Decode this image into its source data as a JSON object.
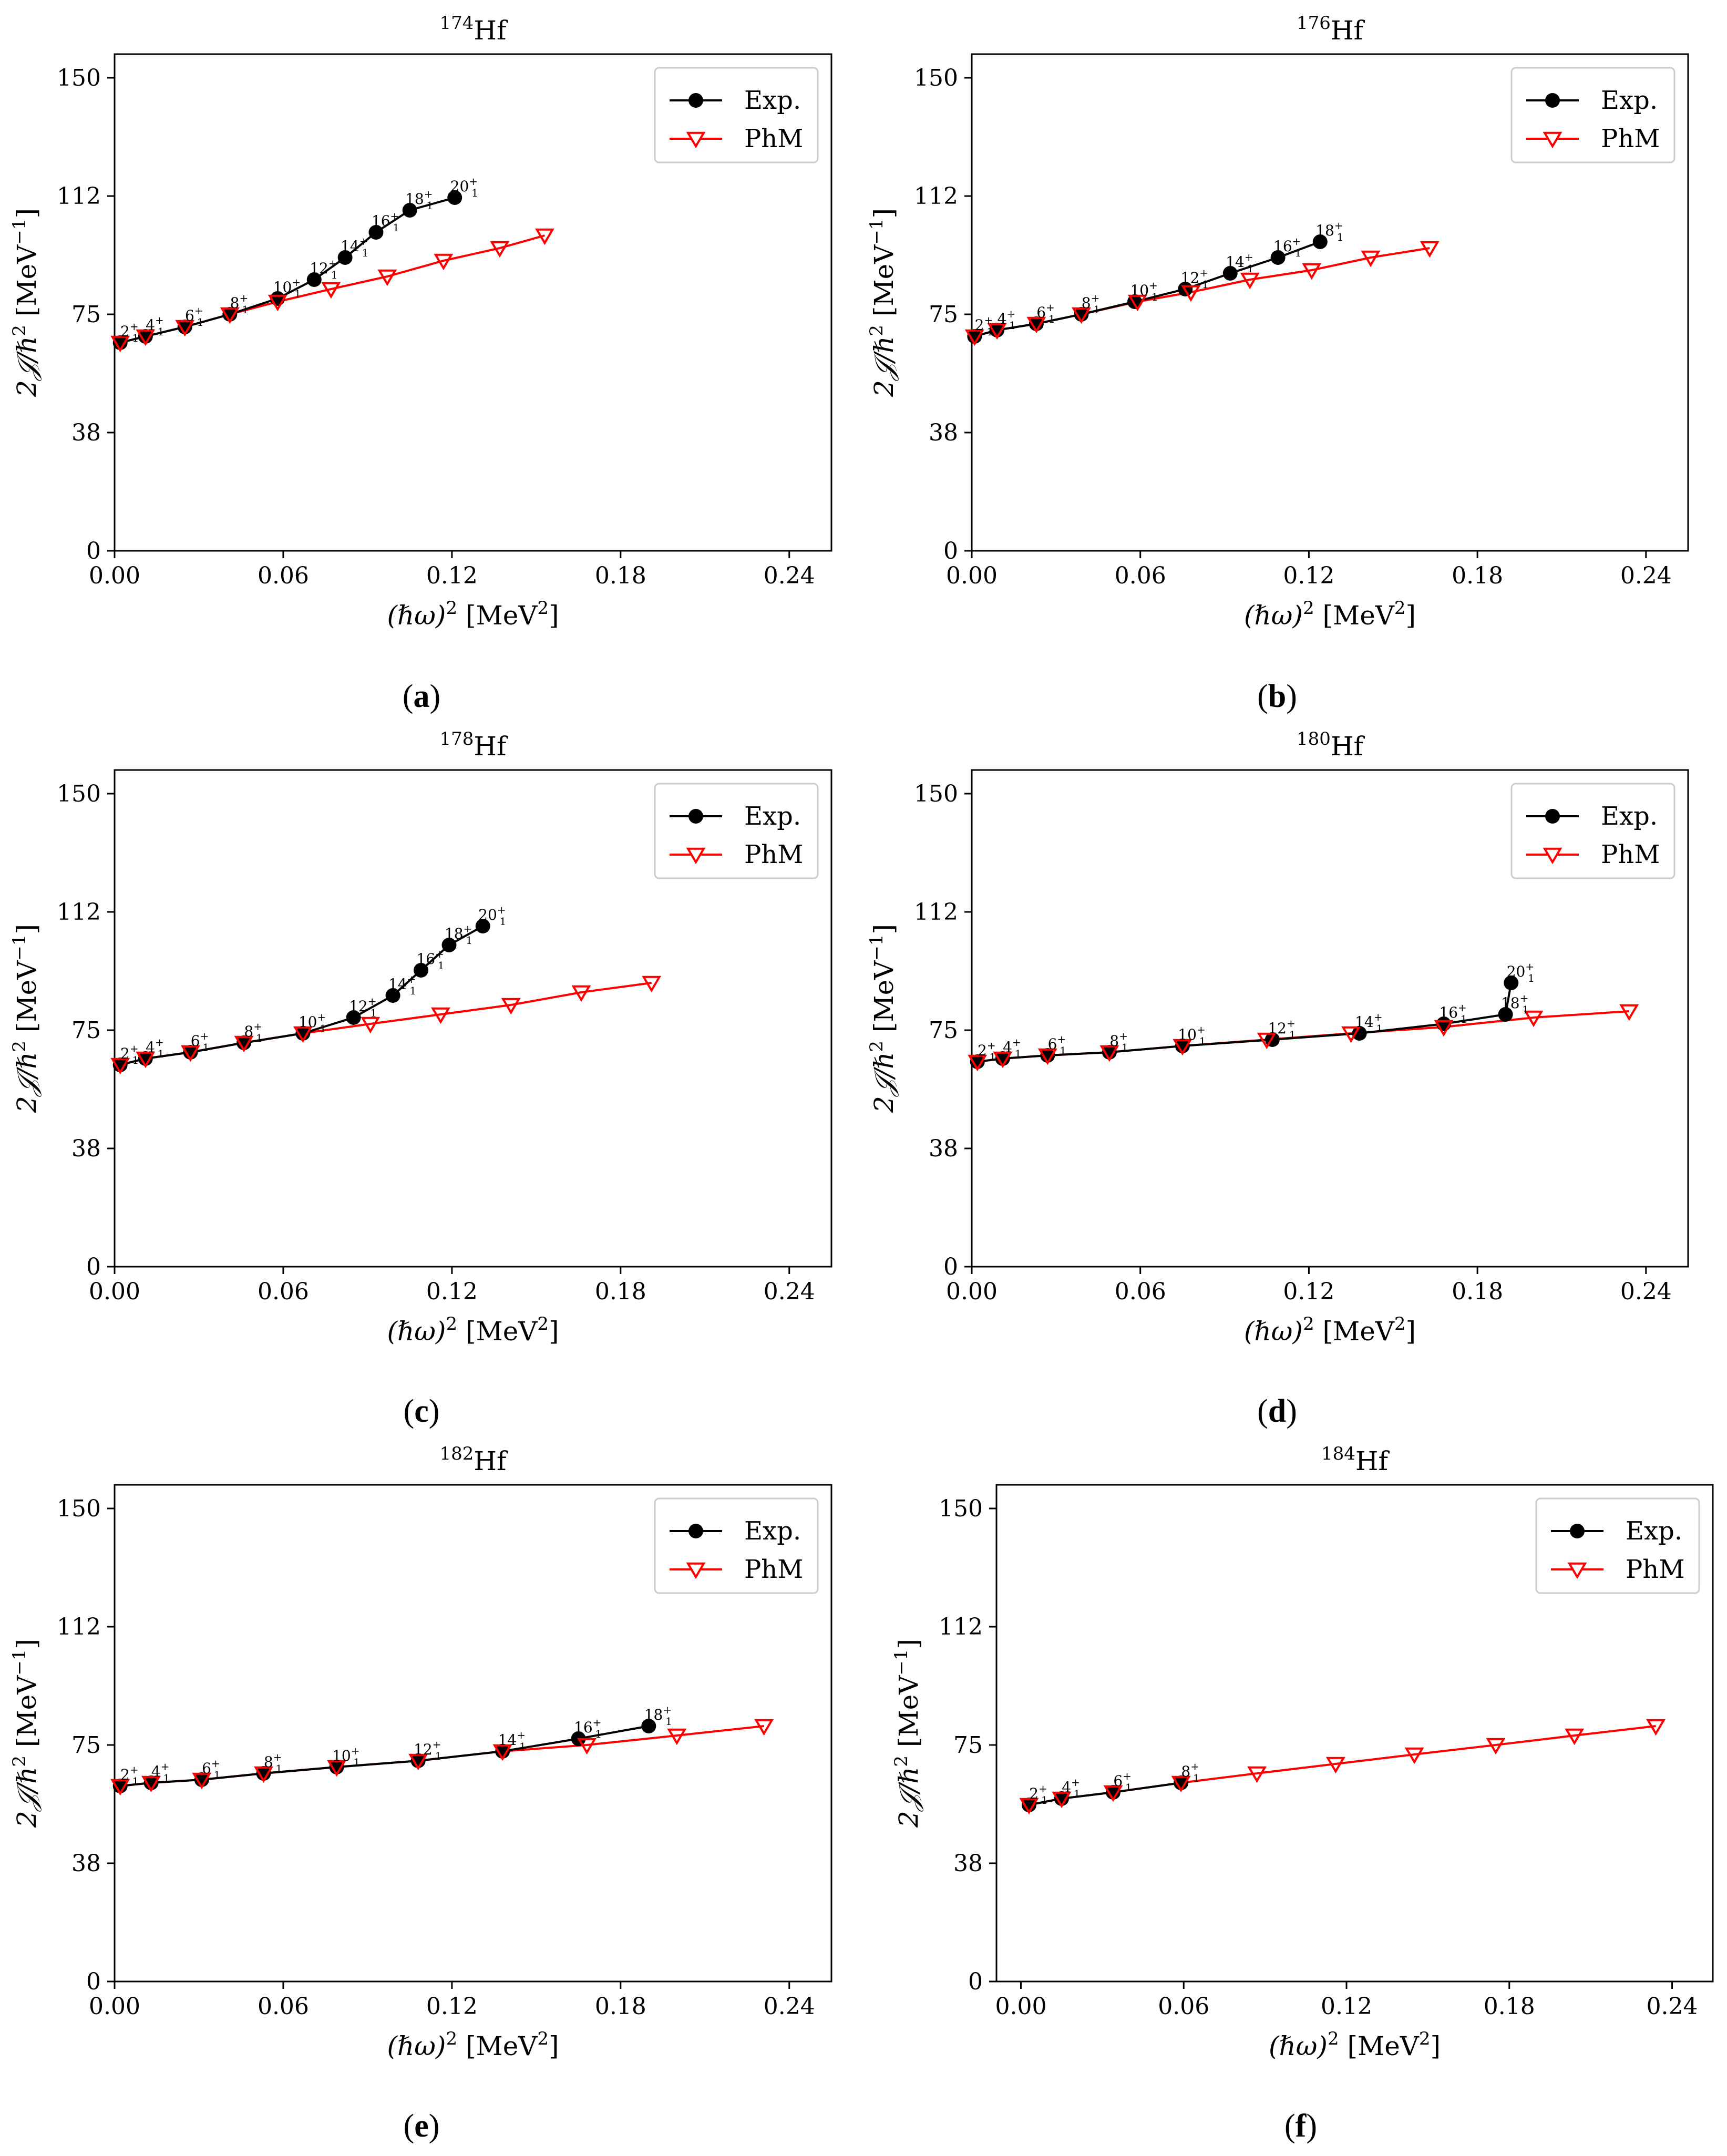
{
  "legend": {
    "exp": "Exp.",
    "phm": "PhM"
  },
  "axes": {
    "xlabel_pre": "(ℏω)",
    "xlabel_sup": "2",
    "xlabel_unit": " [MeV",
    "xlabel_unit_sup": "2",
    "xlabel_close": "]",
    "ylabel_pre": "2𝒥/ℏ",
    "ylabel_sup": "2",
    "ylabel_unit": " [MeV",
    "ylabel_unit_sup": "−1",
    "ylabel_close": "]",
    "xticks": [
      "0.00",
      "0.06",
      "0.12",
      "0.18",
      "0.24"
    ],
    "yticks": [
      "0",
      "38",
      "75",
      "112",
      "150"
    ]
  },
  "colors": {
    "exp": "#000000",
    "phm": "#ff0000"
  },
  "captions": [
    {
      "open": "(",
      "letter": "a",
      "close": ")"
    },
    {
      "open": "(",
      "letter": "b",
      "close": ")"
    },
    {
      "open": "(",
      "letter": "c",
      "close": ")"
    },
    {
      "open": "(",
      "letter": "d",
      "close": ")"
    },
    {
      "open": "(",
      "letter": "e",
      "close": ")"
    },
    {
      "open": "(",
      "letter": "f",
      "close": ")"
    }
  ],
  "chart_data": [
    {
      "type": "line",
      "title_mass": "174",
      "title_element": "Hf",
      "xlim": [
        0,
        0.255
      ],
      "ylim": [
        0,
        157.5
      ],
      "xticks": [
        0,
        0.06,
        0.12,
        0.18,
        0.24
      ],
      "yticks": [
        0,
        37.5,
        75,
        112.5,
        150
      ],
      "legend_position": "top-right",
      "series": [
        {
          "name": "Exp.",
          "marker": "circle",
          "x": [
            0.002,
            0.011,
            0.025,
            0.041,
            0.058,
            0.071,
            0.082,
            0.093,
            0.105,
            0.121
          ],
          "y": [
            66,
            68,
            71,
            75,
            80,
            86,
            93,
            101,
            108,
            112
          ],
          "labels": [
            [
              "2",
              "1"
            ],
            [
              "4",
              "1"
            ],
            [
              "6",
              "1"
            ],
            [
              "8",
              "1"
            ],
            [
              "10",
              "1"
            ],
            [
              "12",
              "1"
            ],
            [
              "14",
              "1"
            ],
            [
              "16",
              "1"
            ],
            [
              "18",
              "1"
            ],
            [
              "20",
              "1"
            ]
          ]
        },
        {
          "name": "PhM",
          "marker": "triangle_down",
          "x": [
            0.002,
            0.011,
            0.025,
            0.041,
            0.058,
            0.077,
            0.097,
            0.117,
            0.137,
            0.153
          ],
          "y": [
            66,
            68,
            71,
            75,
            79,
            83,
            87,
            92,
            96,
            100
          ]
        }
      ]
    },
    {
      "type": "line",
      "title_mass": "176",
      "title_element": "Hf",
      "xlim": [
        0,
        0.255
      ],
      "ylim": [
        0,
        157.5
      ],
      "xticks": [
        0,
        0.06,
        0.12,
        0.18,
        0.24
      ],
      "yticks": [
        0,
        37.5,
        75,
        112.5,
        150
      ],
      "legend_position": "top-right",
      "series": [
        {
          "name": "Exp.",
          "marker": "circle",
          "x": [
            0.001,
            0.009,
            0.023,
            0.039,
            0.058,
            0.076,
            0.092,
            0.109,
            0.124
          ],
          "y": [
            68,
            70,
            72,
            75,
            79,
            83,
            88,
            93,
            98
          ],
          "labels": [
            [
              "2",
              "1"
            ],
            [
              "4",
              "1"
            ],
            [
              "6",
              "1"
            ],
            [
              "8",
              "1"
            ],
            [
              "10",
              "1"
            ],
            [
              "12",
              "1"
            ],
            [
              "14",
              "1"
            ],
            [
              "16",
              "1"
            ],
            [
              "18",
              "1"
            ]
          ]
        },
        {
          "name": "PhM",
          "marker": "triangle_down",
          "x": [
            0.001,
            0.009,
            0.023,
            0.039,
            0.059,
            0.078,
            0.099,
            0.121,
            0.142,
            0.163
          ],
          "y": [
            68,
            70,
            72,
            75,
            79,
            82,
            86,
            89,
            93,
            96
          ]
        }
      ]
    },
    {
      "type": "line",
      "title_mass": "178",
      "title_element": "Hf",
      "xlim": [
        0,
        0.255
      ],
      "ylim": [
        0,
        157.5
      ],
      "xticks": [
        0,
        0.06,
        0.12,
        0.18,
        0.24
      ],
      "yticks": [
        0,
        37.5,
        75,
        112.5,
        150
      ],
      "legend_position": "top-right",
      "series": [
        {
          "name": "Exp.",
          "marker": "circle",
          "x": [
            0.002,
            0.011,
            0.027,
            0.046,
            0.067,
            0.085,
            0.099,
            0.109,
            0.119,
            0.131
          ],
          "y": [
            64,
            66,
            68,
            71,
            74,
            79,
            86,
            94,
            102,
            108
          ],
          "labels": [
            [
              "2",
              "1"
            ],
            [
              "4",
              "1"
            ],
            [
              "6",
              "1"
            ],
            [
              "8",
              "1"
            ],
            [
              "10",
              "1"
            ],
            [
              "12",
              "1"
            ],
            [
              "14",
              "1"
            ],
            [
              "16",
              "1"
            ],
            [
              "18",
              "1"
            ],
            [
              "20",
              "1"
            ]
          ]
        },
        {
          "name": "PhM",
          "marker": "triangle_down",
          "x": [
            0.002,
            0.011,
            0.027,
            0.046,
            0.067,
            0.091,
            0.116,
            0.141,
            0.166,
            0.191
          ],
          "y": [
            64,
            66,
            68,
            71,
            74,
            77,
            80,
            83,
            87,
            90
          ]
        }
      ]
    },
    {
      "type": "line",
      "title_mass": "180",
      "title_element": "Hf",
      "xlim": [
        0,
        0.255
      ],
      "ylim": [
        0,
        157.5
      ],
      "xticks": [
        0,
        0.06,
        0.12,
        0.18,
        0.24
      ],
      "yticks": [
        0,
        37.5,
        75,
        112.5,
        150
      ],
      "legend_position": "top-right",
      "series": [
        {
          "name": "Exp.",
          "marker": "circle",
          "x": [
            0.002,
            0.011,
            0.027,
            0.049,
            0.075,
            0.107,
            0.138,
            0.168,
            0.19,
            0.192
          ],
          "y": [
            65,
            66,
            67,
            68,
            70,
            72,
            74,
            77,
            80,
            90
          ],
          "labels": [
            [
              "2",
              "1"
            ],
            [
              "4",
              "1"
            ],
            [
              "6",
              "1"
            ],
            [
              "8",
              "1"
            ],
            [
              "10",
              "1"
            ],
            [
              "12",
              "1"
            ],
            [
              "14",
              "1"
            ],
            [
              "16",
              "1"
            ],
            [
              "18",
              "1"
            ],
            [
              "20",
              "1"
            ]
          ]
        },
        {
          "name": "PhM",
          "marker": "triangle_down",
          "x": [
            0.002,
            0.011,
            0.027,
            0.049,
            0.075,
            0.105,
            0.135,
            0.168,
            0.2,
            0.234
          ],
          "y": [
            65,
            66,
            67,
            68,
            70,
            72,
            74,
            76,
            79,
            81
          ]
        }
      ]
    },
    {
      "type": "line",
      "title_mass": "182",
      "title_element": "Hf",
      "xlim": [
        0,
        0.255
      ],
      "ylim": [
        0,
        157.5
      ],
      "xticks": [
        0,
        0.06,
        0.12,
        0.18,
        0.24
      ],
      "yticks": [
        0,
        37.5,
        75,
        112.5,
        150
      ],
      "legend_position": "top-right",
      "series": [
        {
          "name": "Exp.",
          "marker": "circle",
          "x": [
            0.002,
            0.013,
            0.031,
            0.053,
            0.079,
            0.108,
            0.138,
            0.165,
            0.19
          ],
          "y": [
            62,
            63,
            64,
            66,
            68,
            70,
            73,
            77,
            81
          ],
          "labels": [
            [
              "2",
              "1"
            ],
            [
              "4",
              "1"
            ],
            [
              "6",
              "1"
            ],
            [
              "8",
              "1"
            ],
            [
              "10",
              "1"
            ],
            [
              "12",
              "1"
            ],
            [
              "14",
              "1"
            ],
            [
              "16",
              "1"
            ],
            [
              "18",
              "1"
            ]
          ]
        },
        {
          "name": "PhM",
          "marker": "triangle_down",
          "x": [
            0.002,
            0.013,
            0.031,
            0.053,
            0.079,
            0.108,
            0.138,
            0.168,
            0.2,
            0.231
          ],
          "y": [
            62,
            63,
            64,
            66,
            68,
            70,
            73,
            75,
            78,
            81
          ]
        }
      ]
    },
    {
      "type": "line",
      "title_mass": "184",
      "title_element": "Hf",
      "xlim": [
        -0.009,
        0.255
      ],
      "ylim": [
        0,
        157.5
      ],
      "xticks": [
        0,
        0.06,
        0.12,
        0.18,
        0.24
      ],
      "yticks": [
        0,
        37.5,
        75,
        112.5,
        150
      ],
      "legend_position": "top-right",
      "series": [
        {
          "name": "Exp.",
          "marker": "circle",
          "x": [
            0.003,
            0.015,
            0.034,
            0.059
          ],
          "y": [
            56,
            58,
            60,
            63
          ],
          "labels": [
            [
              "2",
              "1"
            ],
            [
              "4",
              "1"
            ],
            [
              "6",
              "1"
            ],
            [
              "8",
              "1"
            ]
          ]
        },
        {
          "name": "PhM",
          "marker": "triangle_down",
          "x": [
            0.003,
            0.015,
            0.034,
            0.059,
            0.087,
            0.116,
            0.145,
            0.175,
            0.204,
            0.234
          ],
          "y": [
            56,
            58,
            60,
            63,
            66,
            69,
            72,
            75,
            78,
            81
          ]
        }
      ]
    }
  ]
}
